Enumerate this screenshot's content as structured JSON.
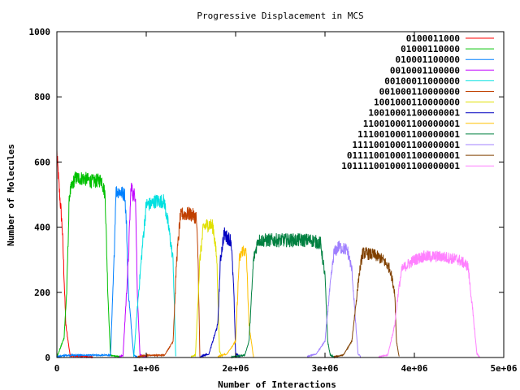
{
  "chart_data": {
    "type": "line",
    "title": "Progressive Displacement in MCS",
    "xlabel": "Number of Interactions",
    "ylabel": "Number of Molecules",
    "xlim": [
      0,
      5000000
    ],
    "ylim": [
      0,
      1000
    ],
    "x_ticks": [
      {
        "value": 0,
        "label": "0"
      },
      {
        "value": 1000000,
        "label": "1e+06"
      },
      {
        "value": 2000000,
        "label": "2e+06"
      },
      {
        "value": 3000000,
        "label": "3e+06"
      },
      {
        "value": 4000000,
        "label": "4e+06"
      },
      {
        "value": 5000000,
        "label": "5e+06"
      }
    ],
    "y_ticks": [
      {
        "value": 0,
        "label": "0"
      },
      {
        "value": 200,
        "label": "200"
      },
      {
        "value": 400,
        "label": "400"
      },
      {
        "value": 600,
        "label": "600"
      },
      {
        "value": 800,
        "label": "800"
      },
      {
        "value": 1000,
        "label": "1000"
      }
    ],
    "grid": false,
    "legend_position": "top-right",
    "series": [
      {
        "name": "0100011000",
        "color": "#ff0000",
        "x": [
          0,
          20000,
          60000,
          100000,
          150000,
          400000
        ],
        "y": [
          630,
          540,
          400,
          100,
          3,
          0
        ]
      },
      {
        "name": "01000110000",
        "color": "#00c000",
        "x": [
          0,
          80000,
          110000,
          140000,
          200000,
          300000,
          400000,
          500000,
          540000,
          570000,
          600000,
          700000
        ],
        "y": [
          0,
          60,
          200,
          500,
          550,
          550,
          540,
          545,
          500,
          200,
          5,
          0
        ]
      },
      {
        "name": "010001100000",
        "color": "#0080ff",
        "x": [
          0,
          100000,
          300000,
          500000,
          600000,
          640000,
          660000,
          700000,
          760000,
          780000,
          800000,
          860000,
          900000
        ],
        "y": [
          0,
          5,
          5,
          5,
          5,
          300,
          510,
          510,
          500,
          400,
          200,
          5,
          0
        ]
      },
      {
        "name": "0010001100000",
        "color": "#c000ff",
        "x": [
          700000,
          740000,
          800000,
          830000,
          850000,
          880000,
          900000,
          930000,
          960000,
          1000000
        ],
        "y": [
          0,
          5,
          300,
          530,
          500,
          500,
          200,
          5,
          3,
          0
        ]
      },
      {
        "name": "00100011000000",
        "color": "#00e0e0",
        "x": [
          860000,
          900000,
          960000,
          1000000,
          1050000,
          1100000,
          1200000,
          1250000,
          1300000,
          1330000
        ],
        "y": [
          0,
          150,
          350,
          470,
          470,
          480,
          480,
          400,
          300,
          0
        ]
      },
      {
        "name": "001000110000000",
        "color": "#c04000",
        "x": [
          900000,
          1000000,
          1200000,
          1300000,
          1340000,
          1380000,
          1400000,
          1500000,
          1560000,
          1580000,
          1600000
        ],
        "y": [
          0,
          5,
          5,
          50,
          300,
          430,
          440,
          440,
          430,
          300,
          0
        ]
      },
      {
        "name": "1001000110000000",
        "color": "#e0e000",
        "x": [
          1500000,
          1550000,
          1600000,
          1640000,
          1700000,
          1750000,
          1790000,
          1820000,
          1850000
        ],
        "y": [
          0,
          5,
          300,
          400,
          410,
          400,
          300,
          20,
          0
        ]
      },
      {
        "name": "10010001100000001",
        "color": "#0000c0",
        "x": [
          1600000,
          1700000,
          1800000,
          1830000,
          1870000,
          1900000,
          1950000,
          1980000,
          2000000,
          2050000
        ],
        "y": [
          0,
          10,
          100,
          300,
          380,
          370,
          360,
          200,
          10,
          0
        ]
      },
      {
        "name": "110010001100000001",
        "color": "#ffc000",
        "x": [
          1800000,
          1900000,
          2000000,
          2040000,
          2080000,
          2120000,
          2150000,
          2200000
        ],
        "y": [
          0,
          10,
          50,
          300,
          330,
          320,
          100,
          0
        ]
      },
      {
        "name": "1110010001100000001",
        "color": "#008040",
        "x": [
          1950000,
          2100000,
          2150000,
          2200000,
          2250000,
          2300000,
          2500000,
          2700000,
          2850000,
          2950000,
          3000000,
          3030000,
          3060000,
          3100000
        ],
        "y": [
          0,
          5,
          50,
          300,
          360,
          360,
          360,
          360,
          360,
          350,
          250,
          50,
          5,
          0
        ]
      },
      {
        "name": "11110010001100000001",
        "color": "#a080ff",
        "x": [
          2800000,
          2900000,
          3000000,
          3050000,
          3100000,
          3150000,
          3250000,
          3300000,
          3350000,
          3370000,
          3400000
        ],
        "y": [
          0,
          10,
          50,
          200,
          320,
          340,
          330,
          270,
          80,
          10,
          0
        ]
      },
      {
        "name": "011110010001100000001",
        "color": "#804000",
        "x": [
          3100000,
          3200000,
          3300000,
          3380000,
          3420000,
          3450000,
          3550000,
          3650000,
          3730000,
          3780000,
          3800000,
          3830000
        ],
        "y": [
          0,
          5,
          50,
          250,
          320,
          320,
          315,
          300,
          270,
          200,
          50,
          0
        ]
      },
      {
        "name": "1011110010001100000001",
        "color": "#ff80ff",
        "x": [
          3600000,
          3700000,
          3780000,
          3820000,
          3860000,
          3900000,
          4000000,
          4100000,
          4300000,
          4500000,
          4600000,
          4650000,
          4700000,
          4730000
        ],
        "y": [
          0,
          5,
          100,
          200,
          270,
          280,
          300,
          310,
          310,
          300,
          280,
          150,
          10,
          0
        ]
      }
    ]
  }
}
